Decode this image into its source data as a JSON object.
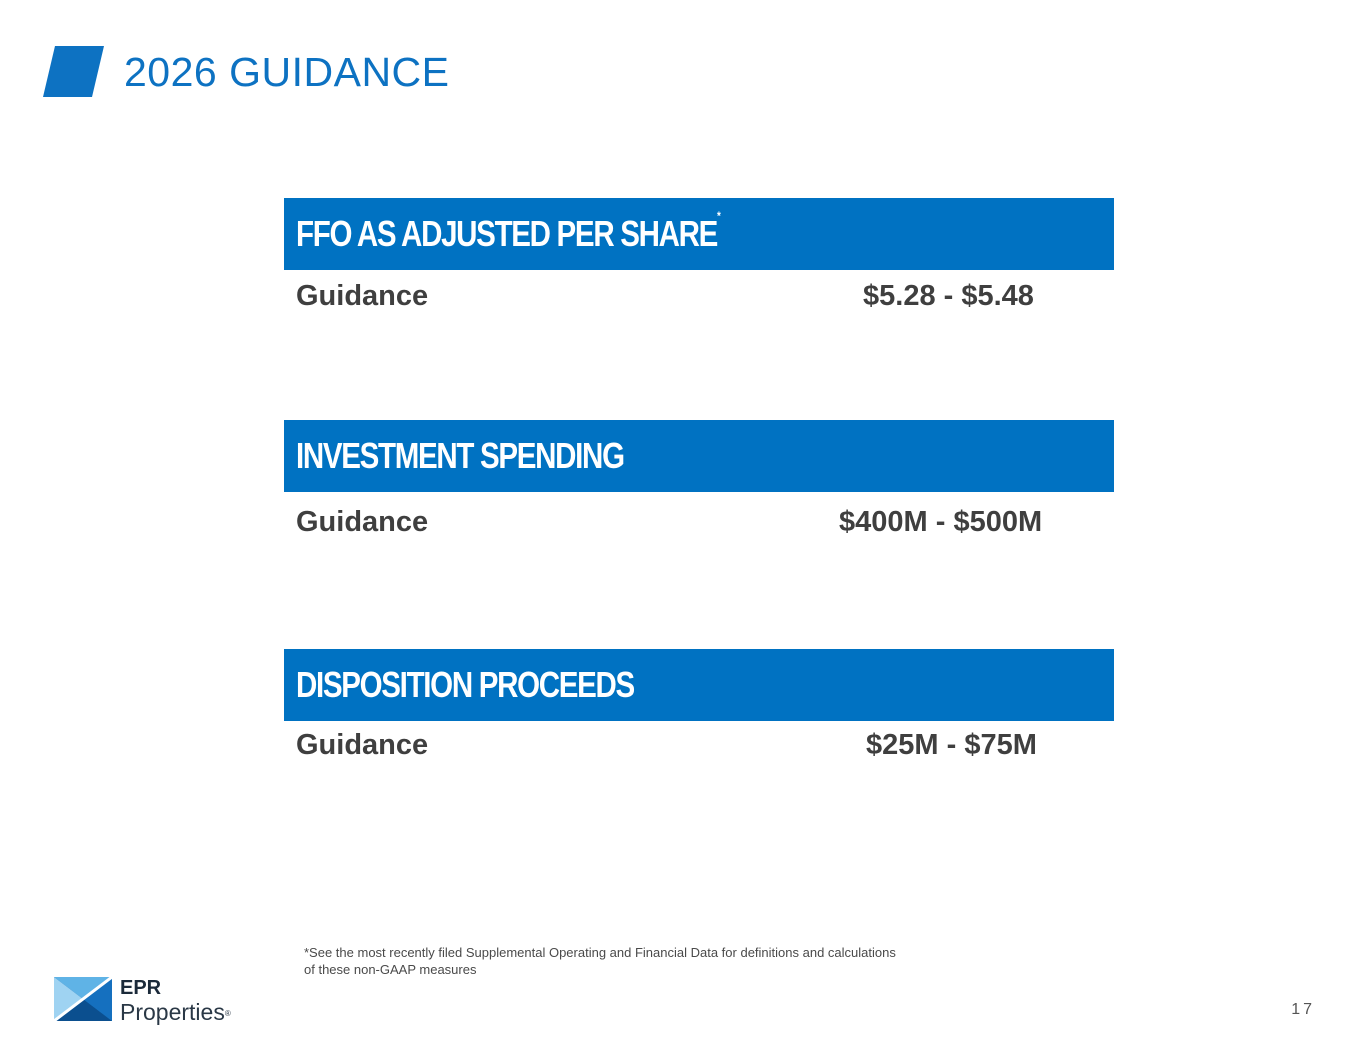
{
  "page_title": "2026 GUIDANCE",
  "sections": [
    {
      "title": "FFO AS ADJUSTED PER SHARE",
      "marker": "*",
      "label": "Guidance",
      "value": "$5.28 - $5.48"
    },
    {
      "title": "INVESTMENT SPENDING",
      "marker": "",
      "label": "Guidance",
      "value": "$400M - $500M"
    },
    {
      "title": "DISPOSITION PROCEEDS",
      "marker": "",
      "label": "Guidance",
      "value": "$25M - $75M"
    }
  ],
  "footnote": {
    "line1": "*See the most recently filed Supplemental Operating and Financial Data for definitions and calculations",
    "line2": "of these non-GAAP measures"
  },
  "logo": {
    "line1": "EPR",
    "line2": "Properties",
    "mark": "®"
  },
  "page_number": "17",
  "colors": {
    "accent": "#0072c2",
    "title": "#0d72c2",
    "text": "#3f3f3f"
  }
}
